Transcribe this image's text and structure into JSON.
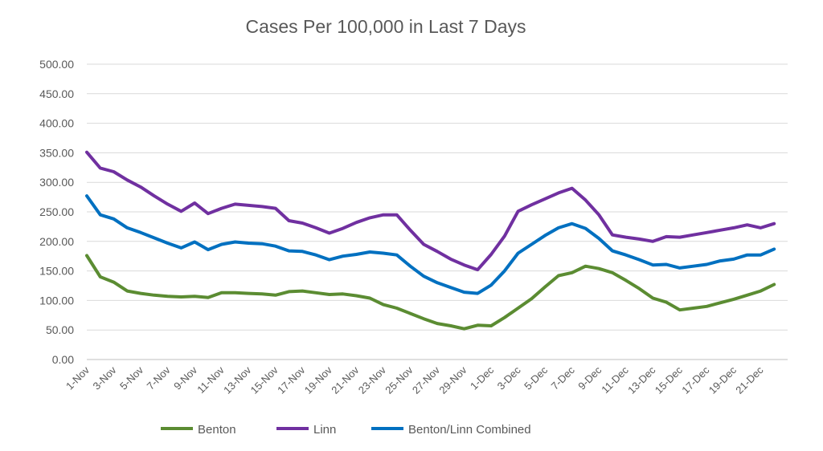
{
  "chart_data": {
    "type": "line",
    "title": "Cases Per 100,000 in Last 7 Days",
    "xlabel": "",
    "ylabel": "",
    "ylim": [
      0,
      500
    ],
    "yticks": [
      "0.00",
      "50.00",
      "100.00",
      "150.00",
      "200.00",
      "250.00",
      "300.00",
      "350.00",
      "400.00",
      "450.00",
      "500.00"
    ],
    "ytick_values": [
      0,
      50,
      100,
      150,
      200,
      250,
      300,
      350,
      400,
      450,
      500
    ],
    "grid": true,
    "legend_position": "bottom",
    "x": [
      "1-Nov",
      "2-Nov",
      "3-Nov",
      "4-Nov",
      "5-Nov",
      "6-Nov",
      "7-Nov",
      "8-Nov",
      "9-Nov",
      "10-Nov",
      "11-Nov",
      "12-Nov",
      "13-Nov",
      "14-Nov",
      "15-Nov",
      "16-Nov",
      "17-Nov",
      "18-Nov",
      "19-Nov",
      "20-Nov",
      "21-Nov",
      "22-Nov",
      "23-Nov",
      "24-Nov",
      "25-Nov",
      "26-Nov",
      "27-Nov",
      "28-Nov",
      "29-Nov",
      "30-Nov",
      "1-Dec",
      "2-Dec",
      "3-Dec",
      "4-Dec",
      "5-Dec",
      "6-Dec",
      "7-Dec",
      "8-Dec",
      "9-Dec",
      "10-Dec",
      "11-Dec",
      "12-Dec",
      "13-Dec",
      "14-Dec",
      "15-Dec",
      "16-Dec",
      "17-Dec",
      "18-Dec",
      "19-Dec",
      "20-Dec",
      "21-Dec",
      "22-Dec",
      "23-Dec"
    ],
    "x_tick_labels": [
      "1-Nov",
      "3-Nov",
      "5-Nov",
      "7-Nov",
      "9-Nov",
      "11-Nov",
      "13-Nov",
      "15-Nov",
      "17-Nov",
      "19-Nov",
      "21-Nov",
      "23-Nov",
      "25-Nov",
      "27-Nov",
      "29-Nov",
      "1-Dec",
      "3-Dec",
      "5-Dec",
      "7-Dec",
      "9-Dec",
      "11-Dec",
      "13-Dec",
      "15-Dec",
      "17-Dec",
      "19-Dec",
      "21-Dec"
    ],
    "series": [
      {
        "name": "Benton",
        "color": "#5b8c32",
        "values": [
          176,
          140,
          131,
          116,
          112,
          109,
          107,
          106,
          107,
          105,
          113,
          113,
          112,
          111,
          109,
          115,
          116,
          113,
          110,
          111,
          108,
          104,
          93,
          87,
          78,
          69,
          61,
          57,
          52,
          58,
          57,
          71,
          87,
          103,
          123,
          142,
          147,
          158,
          154,
          147,
          134,
          120,
          104,
          97,
          84,
          87,
          90,
          96,
          102,
          109,
          116,
          127,
          null
        ]
      },
      {
        "name": "Linn",
        "color": "#7030a0",
        "values": [
          351,
          324,
          318,
          304,
          292,
          277,
          263,
          251,
          265,
          247,
          256,
          263,
          261,
          259,
          256,
          235,
          231,
          223,
          214,
          222,
          232,
          240,
          245,
          245,
          219,
          195,
          183,
          170,
          160,
          152,
          178,
          209,
          251,
          262,
          272,
          282,
          290,
          270,
          245,
          211,
          207,
          204,
          200,
          208,
          207,
          211,
          215,
          219,
          223,
          228,
          223,
          230,
          null
        ]
      },
      {
        "name": "Benton/Linn Combined",
        "color": "#0070c0",
        "values": [
          277,
          245,
          238,
          223,
          215,
          206,
          197,
          189,
          199,
          186,
          195,
          199,
          197,
          196,
          192,
          184,
          183,
          177,
          169,
          175,
          178,
          182,
          180,
          177,
          158,
          141,
          130,
          122,
          114,
          112,
          126,
          150,
          180,
          195,
          210,
          223,
          230,
          222,
          205,
          184,
          177,
          169,
          160,
          161,
          155,
          158,
          161,
          167,
          170,
          177,
          177,
          187,
          null
        ]
      }
    ]
  }
}
